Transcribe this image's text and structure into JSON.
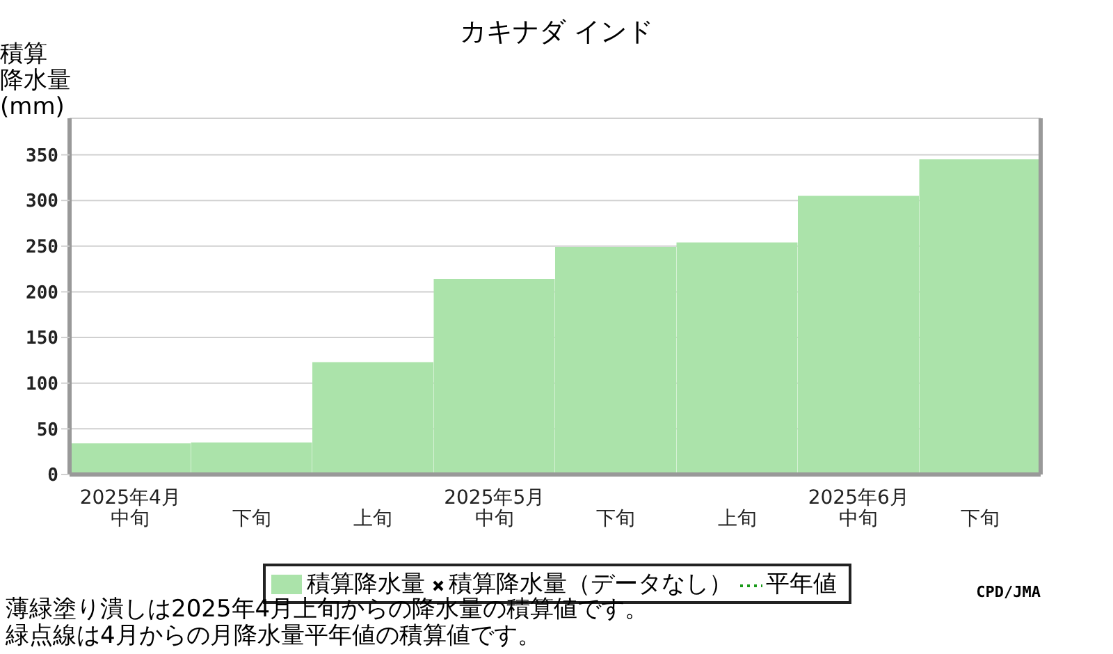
{
  "chart_data": {
    "type": "bar",
    "title": "カキナダ インド",
    "ylabel": "積算降水量(mm)",
    "categories": [
      "2025年4月中旬",
      "下旬",
      "上旬",
      "2025年5月中旬",
      "下旬",
      "上旬",
      "2025年6月中旬",
      "下旬"
    ],
    "series": [
      {
        "name": "積算降水量",
        "color": "#abe3aa",
        "values": [
          34,
          35,
          123,
          214,
          249,
          254,
          305,
          345
        ]
      },
      {
        "name": "積算降水量（データなし）",
        "type": "scatter",
        "marker": "cross",
        "color": "#000000",
        "values": [
          null,
          null,
          null,
          null,
          null,
          null,
          null,
          null
        ]
      },
      {
        "name": "平年値",
        "type": "line",
        "line_style": "dotted",
        "color": "#1a9a1a",
        "values": [
          null,
          null,
          null,
          null,
          null,
          null,
          null,
          null
        ]
      }
    ],
    "ylim": [
      0,
      390
    ],
    "yticks": [
      0,
      50,
      100,
      150,
      200,
      250,
      300,
      350
    ],
    "grid": "y",
    "legend": "bottom",
    "annotations": [
      "CPD/JMA",
      "薄緑塗り潰しは2025年4月上旬からの降水量の積算値です。",
      "緑点線は4月からの月降水量平年値の積算値です。"
    ]
  }
}
